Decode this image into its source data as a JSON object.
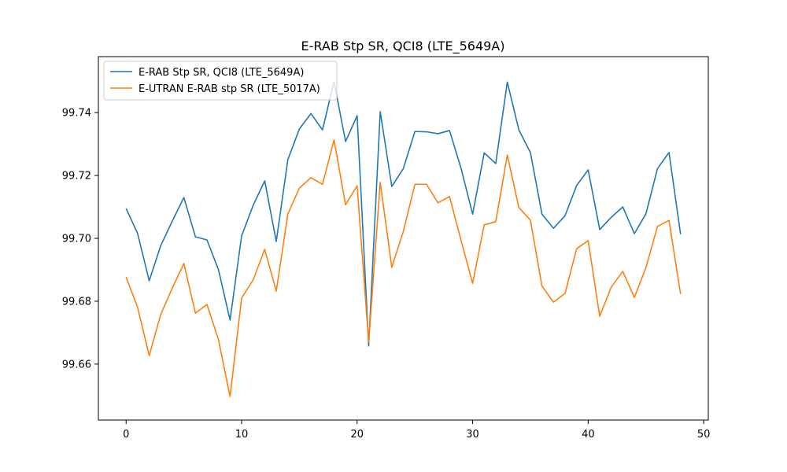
{
  "chart_data": {
    "type": "line",
    "title": "E-RAB Stp SR, QCI8 (LTE_5649A)",
    "xlabel": "",
    "ylabel": "",
    "xlim": [
      -2.4,
      50.4
    ],
    "ylim": [
      99.6422,
      99.7578
    ],
    "xticks": [
      0,
      10,
      20,
      30,
      40,
      50
    ],
    "yticks": [
      99.66,
      99.68,
      99.7,
      99.72,
      99.74
    ],
    "ytick_labels": [
      "99.66",
      "99.68",
      "99.70",
      "99.72",
      "99.74"
    ],
    "legend_position": "upper-left",
    "grid": false,
    "x": [
      0,
      1,
      2,
      3,
      4,
      5,
      6,
      7,
      8,
      9,
      10,
      11,
      12,
      13,
      14,
      15,
      16,
      17,
      18,
      19,
      20,
      21,
      22,
      23,
      24,
      25,
      26,
      27,
      28,
      29,
      30,
      31,
      32,
      33,
      34,
      35,
      36,
      37,
      38,
      39,
      40,
      41,
      42,
      43,
      44,
      45,
      46,
      47,
      48
    ],
    "series": [
      {
        "name": "E-RAB Stp SR, QCI8 (LTE_5649A)",
        "color": "#1f77b4",
        "values": [
          99.7095,
          99.7015,
          99.6865,
          99.6977,
          99.7055,
          99.713,
          99.7005,
          99.6995,
          99.69,
          99.674,
          99.7008,
          99.7105,
          99.7183,
          99.699,
          99.725,
          99.7348,
          99.7397,
          99.7345,
          99.7498,
          99.7308,
          99.739,
          99.6658,
          99.7403,
          99.7165,
          99.7222,
          99.734,
          99.7339,
          99.7333,
          99.7343,
          99.7222,
          99.7077,
          99.7272,
          99.7238,
          99.7497,
          99.7345,
          99.7273,
          99.7077,
          99.7032,
          99.7072,
          99.7168,
          99.7218,
          99.7028,
          99.7067,
          99.71,
          99.7015,
          99.7078,
          99.7222,
          99.7273,
          99.7013
        ]
      },
      {
        "name": "E-UTRAN E-RAB stp SR (LTE_5017A)",
        "color": "#ff7f0e",
        "values": [
          99.6877,
          99.678,
          99.6627,
          99.6758,
          99.6842,
          99.692,
          99.6762,
          99.679,
          99.6677,
          99.6497,
          99.681,
          99.6868,
          99.6965,
          99.6832,
          99.7077,
          99.716,
          99.7193,
          99.7172,
          99.7313,
          99.7107,
          99.7167,
          99.667,
          99.7178,
          99.6908,
          99.7022,
          99.7172,
          99.7172,
          99.7113,
          99.7133,
          99.6993,
          99.6857,
          99.7043,
          99.7053,
          99.7265,
          99.7098,
          99.7058,
          99.6848,
          99.6797,
          99.6825,
          99.6967,
          99.6993,
          99.6752,
          99.6845,
          99.6895,
          99.6812,
          99.6907,
          99.7038,
          99.7057,
          99.6823
        ]
      }
    ]
  }
}
